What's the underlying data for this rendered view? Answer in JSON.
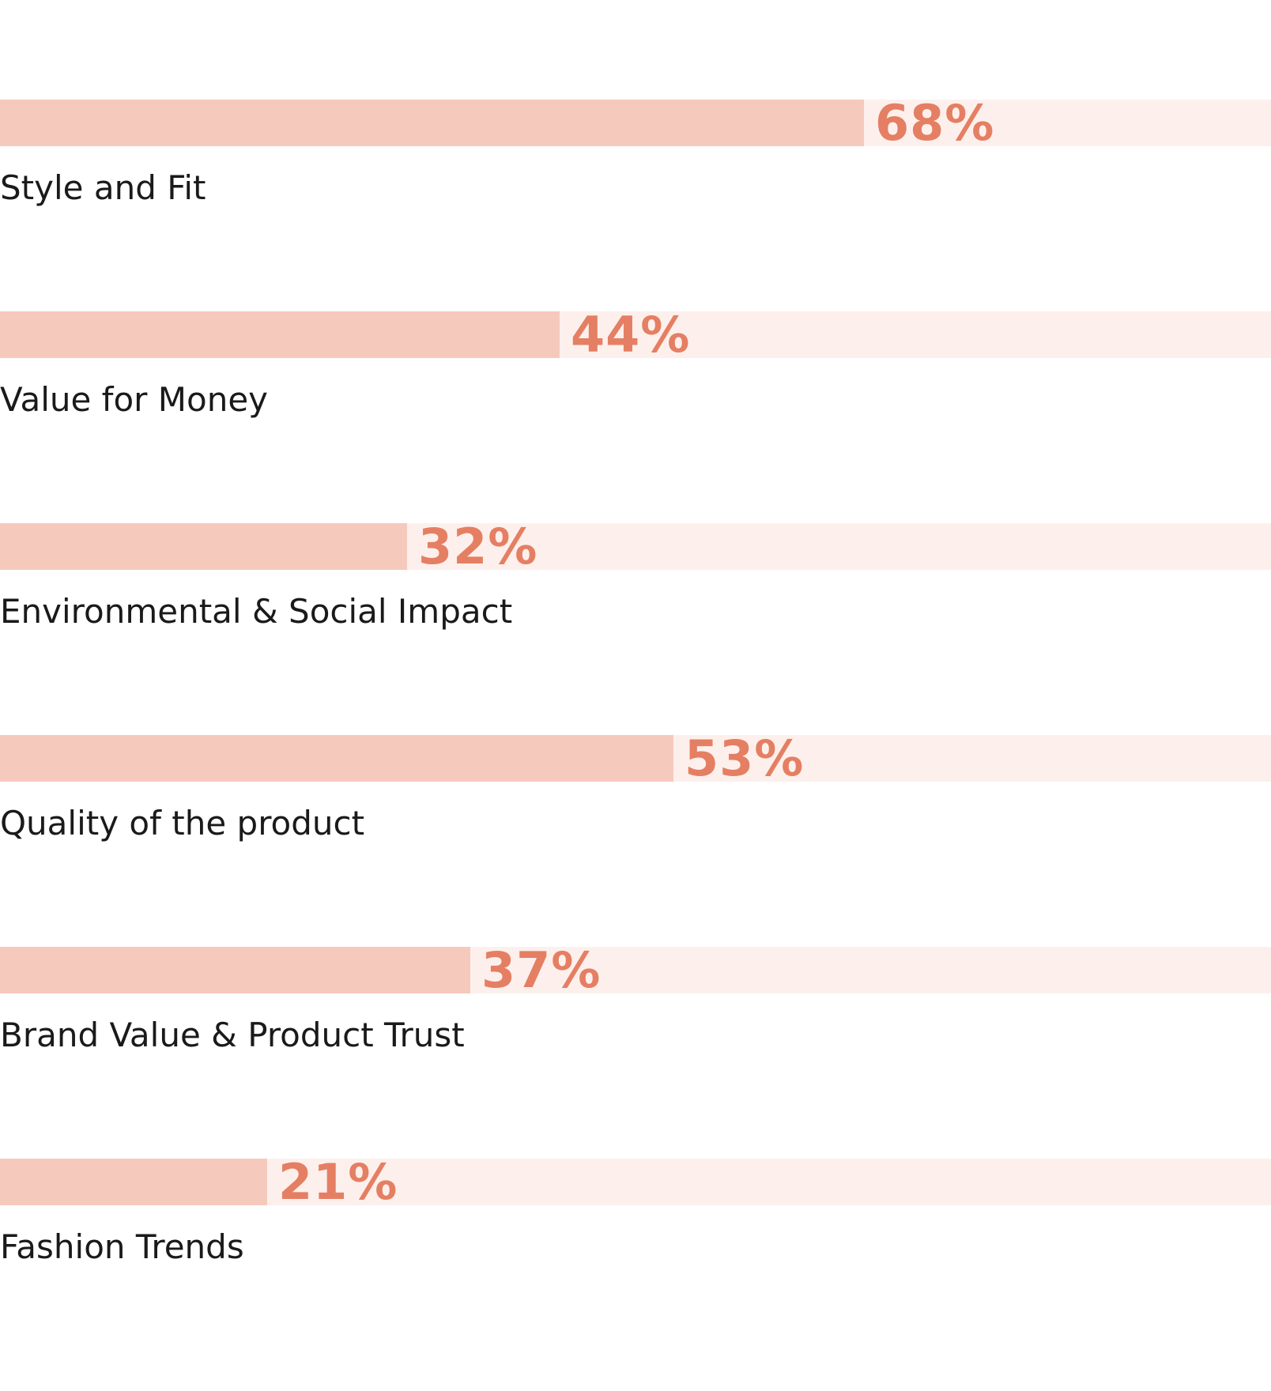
{
  "chart_data": {
    "type": "bar",
    "orientation": "horizontal",
    "title": "",
    "xlabel": "",
    "ylabel": "",
    "xlim": [
      0,
      100
    ],
    "categories": [
      "Style and Fit",
      "Value for Money",
      "Environmental & Social Impact",
      "Quality of the product",
      "Brand Value & Product Trust",
      "Fashion Trends"
    ],
    "values": [
      68,
      44,
      32,
      53,
      37,
      21
    ],
    "value_labels": [
      "68%",
      "44%",
      "32%",
      "53%",
      "37%",
      "21%"
    ]
  },
  "colors": {
    "fill": "#f6c9bd",
    "track": "#fdf0ec",
    "value_text": "#e57f63"
  }
}
